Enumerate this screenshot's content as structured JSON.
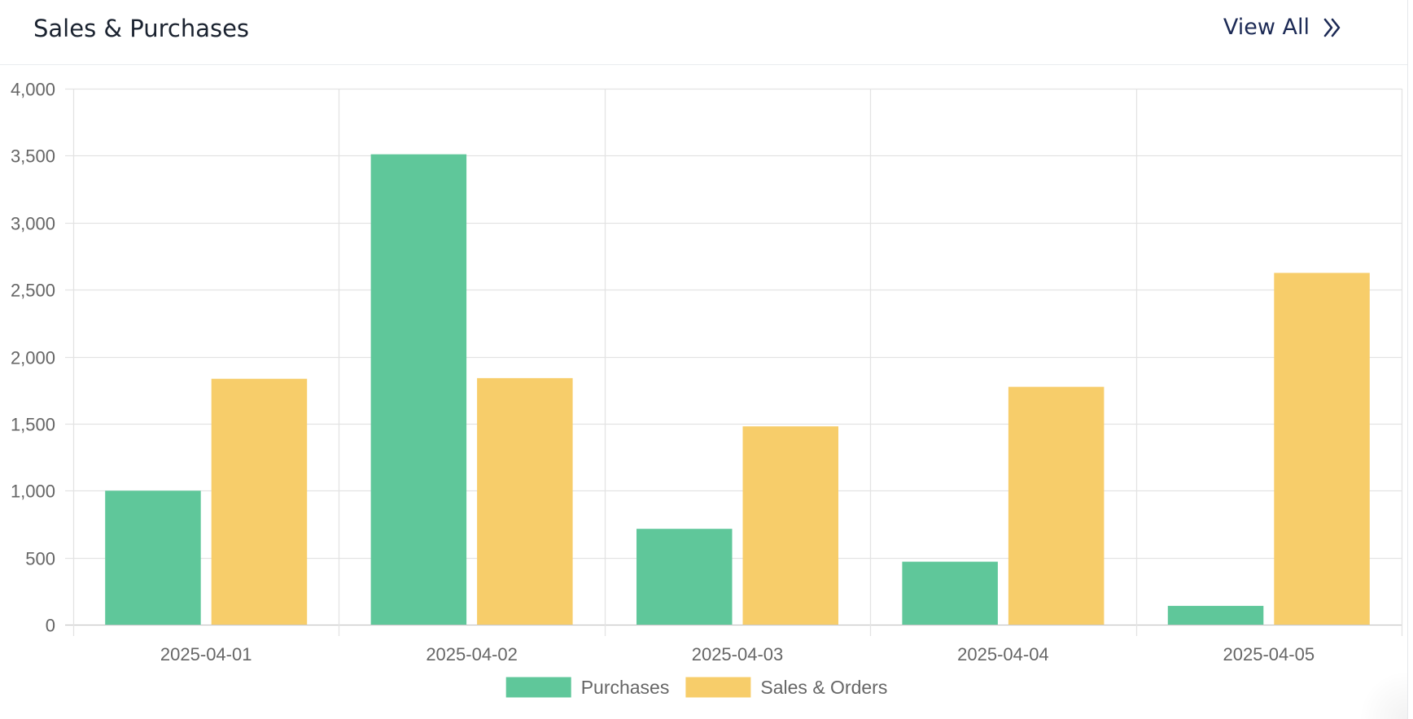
{
  "card": {
    "title": "Sales & Purchases",
    "view_all_label": "View All",
    "view_all_icon": "double-chevron-right-icon"
  },
  "chart_data": {
    "type": "bar",
    "categories": [
      "2025-04-01",
      "2025-04-02",
      "2025-04-03",
      "2025-04-04",
      "2025-04-05"
    ],
    "series": [
      {
        "name": "Purchases",
        "color": "#5fc79a",
        "values": [
          1000,
          3510,
          715,
          470,
          140
        ]
      },
      {
        "name": "Sales & Orders",
        "color": "#f7cd6a",
        "values": [
          1835,
          1840,
          1480,
          1775,
          2625
        ]
      }
    ],
    "ylim": [
      0,
      4000
    ],
    "yticks": [
      0,
      500,
      1000,
      1500,
      2000,
      2500,
      3000,
      3500,
      4000
    ],
    "ytick_labels": [
      "0",
      "500",
      "1,000",
      "1,500",
      "2,000",
      "2,500",
      "3,000",
      "3,500",
      "4,000"
    ],
    "grid": true,
    "legend_position": "bottom-center",
    "title": "",
    "xlabel": "",
    "ylabel": ""
  }
}
